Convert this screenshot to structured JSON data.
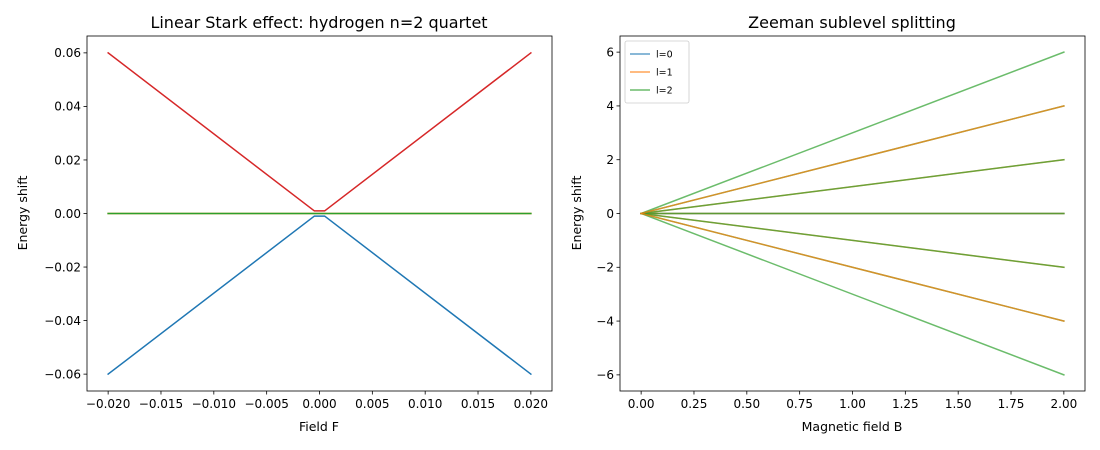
{
  "chart_data": [
    {
      "type": "line",
      "title": "Linear Stark effect: hydrogen n=2 quartet",
      "xlabel": "Field F",
      "ylabel": "Energy shift",
      "xlim": [
        -0.022,
        0.022
      ],
      "ylim": [
        -0.0663,
        0.0663
      ],
      "xticks": [
        -0.02,
        -0.015,
        -0.01,
        -0.005,
        0.0,
        0.005,
        0.01,
        0.015,
        0.02
      ],
      "xtick_labels": [
        "−0.020",
        "−0.015",
        "−0.010",
        "−0.005",
        "0.000",
        "0.005",
        "0.010",
        "0.015",
        "0.020"
      ],
      "yticks": [
        -0.06,
        -0.04,
        -0.02,
        0.0,
        0.02,
        0.04,
        0.06
      ],
      "ytick_labels": [
        "−0.06",
        "−0.04",
        "−0.02",
        "0.00",
        "0.02",
        "0.04",
        "0.06"
      ],
      "grid": false,
      "legend": null,
      "series": [
        {
          "color": "#1f77b4",
          "x": [
            -0.02,
            -0.0005,
            0.0005,
            0.02
          ],
          "y": [
            -0.06,
            -0.001,
            -0.001,
            -0.06
          ]
        },
        {
          "color": "#ff7f0e",
          "x": [
            -0.02,
            0.02
          ],
          "y": [
            0,
            0
          ]
        },
        {
          "color": "#2ca02c",
          "x": [
            -0.02,
            0.02
          ],
          "y": [
            0,
            0
          ]
        },
        {
          "color": "#d62728",
          "x": [
            -0.02,
            -0.0005,
            0.0005,
            0.02
          ],
          "y": [
            0.06,
            0.001,
            0.001,
            0.06
          ]
        }
      ]
    },
    {
      "type": "line",
      "title": "Zeeman sublevel splitting",
      "xlabel": "Magnetic field B",
      "ylabel": "Energy shift",
      "xlim": [
        -0.1,
        2.1
      ],
      "ylim": [
        -6.6,
        6.6
      ],
      "xticks": [
        0.0,
        0.25,
        0.5,
        0.75,
        1.0,
        1.25,
        1.5,
        1.75,
        2.0
      ],
      "xtick_labels": [
        "0.00",
        "0.25",
        "0.50",
        "0.75",
        "1.00",
        "1.25",
        "1.50",
        "1.75",
        "2.00"
      ],
      "yticks": [
        -6,
        -4,
        -2,
        0,
        2,
        4,
        6
      ],
      "ytick_labels": [
        "−6",
        "−4",
        "−2",
        "0",
        "2",
        "4",
        "6"
      ],
      "grid": false,
      "legend": {
        "placement": "top-left",
        "entries": [
          "l=0",
          "l=1",
          "l=2"
        ]
      },
      "series": [
        {
          "name": "l=0",
          "color": "#1f77b4",
          "opacity": 0.7,
          "x": [
            0,
            2
          ],
          "y": [
            0,
            0
          ]
        },
        {
          "color": "#ff7f0e",
          "opacity": 0.7,
          "x": [
            0,
            2
          ],
          "y": [
            0,
            -2
          ]
        },
        {
          "name": "l=1",
          "color": "#ff7f0e",
          "opacity": 0.7,
          "x": [
            0,
            2
          ],
          "y": [
            0,
            0
          ]
        },
        {
          "color": "#ff7f0e",
          "opacity": 0.7,
          "x": [
            0,
            2
          ],
          "y": [
            0,
            2
          ]
        },
        {
          "color": "#2ca02c",
          "opacity": 0.7,
          "x": [
            0,
            2
          ],
          "y": [
            0,
            -4
          ]
        },
        {
          "color": "#2ca02c",
          "opacity": 0.7,
          "x": [
            0,
            2
          ],
          "y": [
            0,
            -2
          ]
        },
        {
          "name": "l=2",
          "color": "#2ca02c",
          "opacity": 0.7,
          "x": [
            0,
            2
          ],
          "y": [
            0,
            0
          ]
        },
        {
          "color": "#2ca02c",
          "opacity": 0.7,
          "x": [
            0,
            2
          ],
          "y": [
            0,
            2
          ]
        },
        {
          "color": "#2ca02c",
          "opacity": 0.7,
          "x": [
            0,
            2
          ],
          "y": [
            0,
            4
          ]
        },
        {
          "color": "#2ca02c",
          "opacity": 0.7,
          "x": [
            0,
            2
          ],
          "y": [
            0,
            -6
          ]
        },
        {
          "color": "#2ca02c",
          "opacity": 0.7,
          "x": [
            0,
            2
          ],
          "y": [
            0,
            6
          ]
        },
        {
          "color": "#ff7f0e",
          "opacity": 0.7,
          "x": [
            0,
            2
          ],
          "y": [
            0,
            -4
          ]
        },
        {
          "color": "#ff7f0e",
          "opacity": 0.7,
          "x": [
            0,
            2
          ],
          "y": [
            0,
            4
          ]
        }
      ]
    }
  ]
}
